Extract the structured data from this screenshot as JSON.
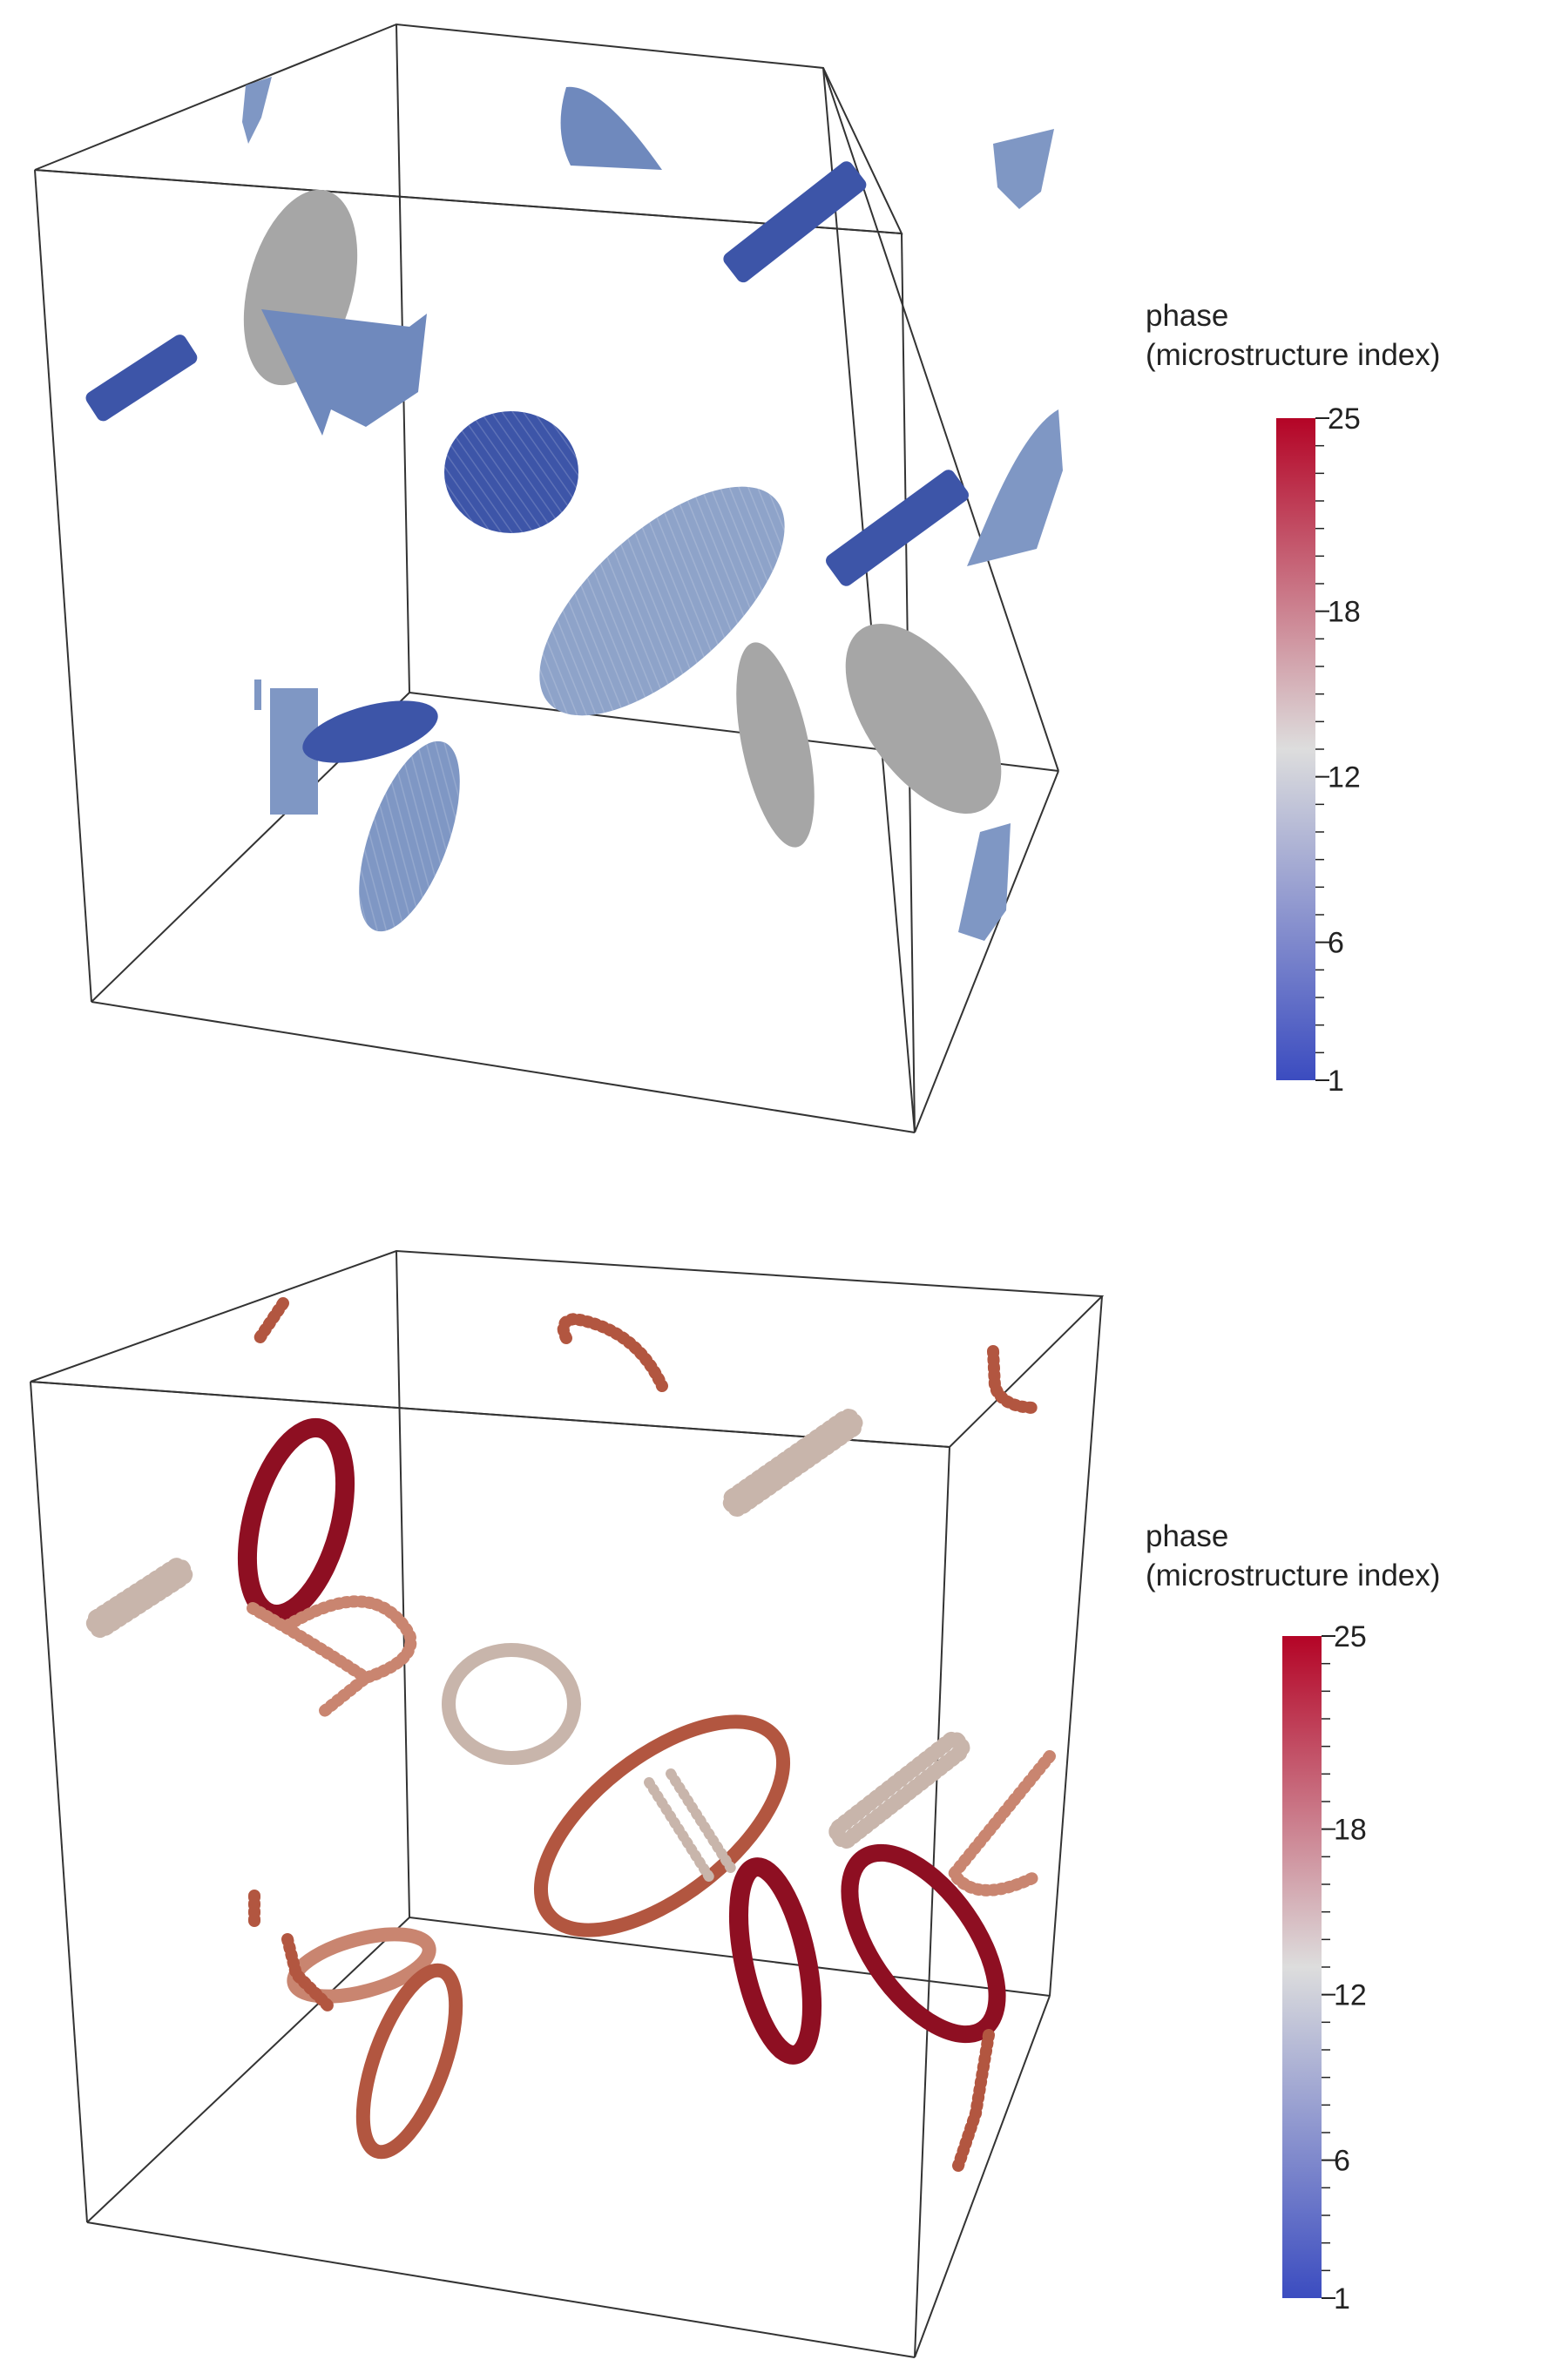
{
  "panels": [
    {
      "id": "top",
      "colorbar": {
        "title_line1": "phase",
        "title_line2": "(microstructure index)",
        "ticks": [
          "25",
          "18",
          "12",
          "6",
          "1"
        ]
      }
    },
    {
      "id": "bottom",
      "colorbar": {
        "title_line1": "phase",
        "title_line2": "(microstructure index)",
        "ticks": [
          "25",
          "18",
          "12",
          "6",
          "1"
        ]
      }
    }
  ],
  "colormap": {
    "name": "cool-to-warm",
    "min": 1,
    "max": 25,
    "low_color": "#3b4cc0",
    "mid_color": "#dddddd",
    "high_color": "#b40426",
    "tick_values": [
      25,
      18,
      12,
      6,
      1
    ]
  },
  "colors": {
    "deep_blue": "#3d55a8",
    "steel_blue": "#7f97c4",
    "gray": "#a6a6a6",
    "light_gray_tan": "#c8b5ab",
    "salmon": "#c98570",
    "rust": "#b25640",
    "dark_red": "#8e0f22"
  }
}
